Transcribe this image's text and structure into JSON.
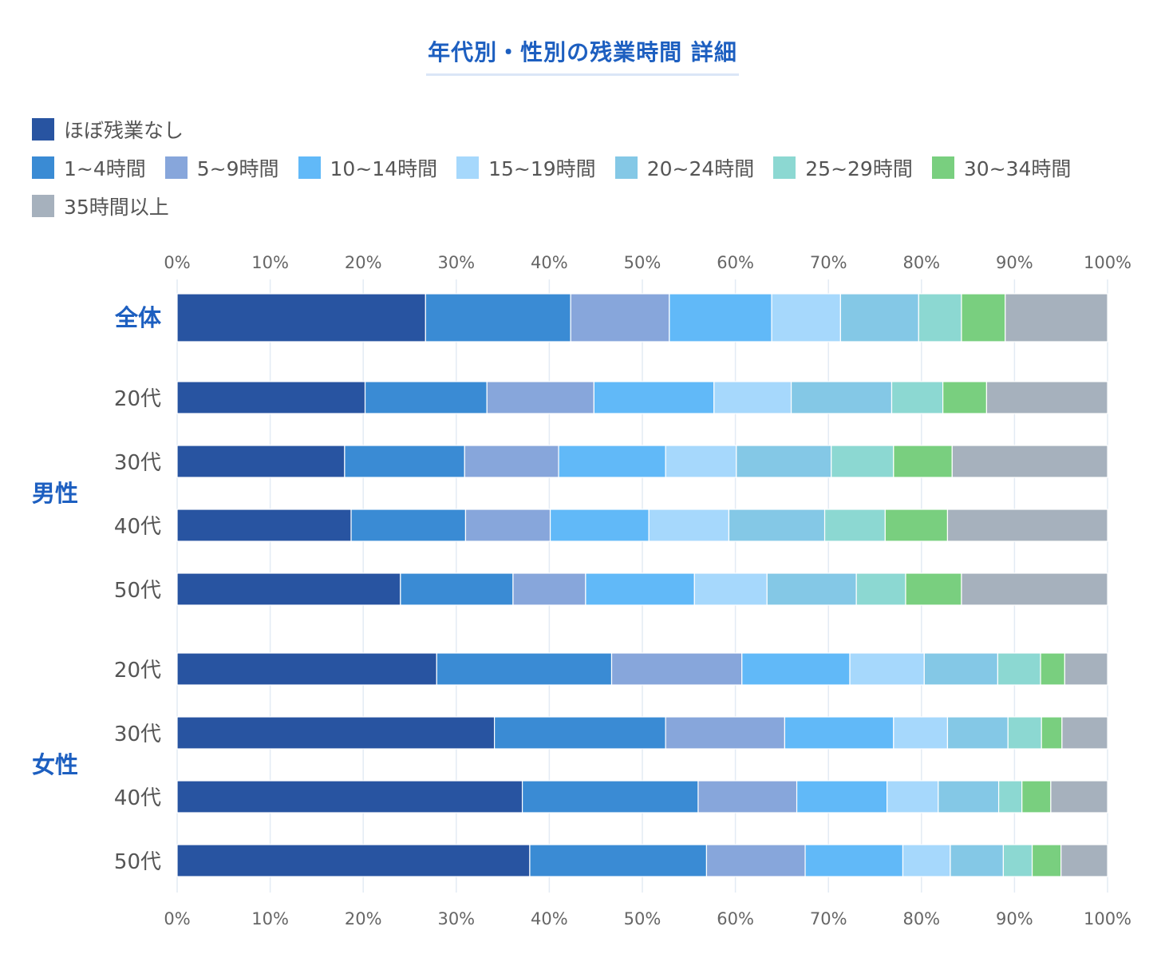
{
  "title": "年代別・性別の残業時間 詳細",
  "colors": [
    "#2854a1",
    "#3a8bd4",
    "#87a6db",
    "#61b9f8",
    "#a6d8fc",
    "#84c8e6",
    "#8cd8d2",
    "#79cf7f",
    "#a6b1bd"
  ],
  "legend": {
    "row1": [
      "ほぼ残業なし"
    ],
    "row2": [
      "1~4時間",
      "5~9時間",
      "10~14時間",
      "15~19時間",
      "20~24時間",
      "25~29時間",
      "30~34時間"
    ],
    "row3": [
      "35時間以上"
    ]
  },
  "chart_data": {
    "type": "bar",
    "orientation": "horizontal",
    "stacked": true,
    "title": "年代別・性別の残業時間 詳細",
    "xlim": [
      0,
      100
    ],
    "x_ticks": [
      "0%",
      "10%",
      "20%",
      "30%",
      "40%",
      "50%",
      "60%",
      "70%",
      "80%",
      "90%",
      "100%"
    ],
    "grid": true,
    "legend_position": "top-left",
    "groups": [
      {
        "label": "",
        "rows": [
          "全体"
        ]
      },
      {
        "label": "男性",
        "rows": [
          "20代",
          "30代",
          "40代",
          "50代"
        ]
      },
      {
        "label": "女性",
        "rows": [
          "20代",
          "30代",
          "40代",
          "50代"
        ]
      }
    ],
    "categories": [
      "全体",
      "男性 20代",
      "男性 30代",
      "男性 40代",
      "男性 50代",
      "女性 20代",
      "女性 30代",
      "女性 40代",
      "女性 50代"
    ],
    "series": [
      {
        "name": "ほぼ残業なし",
        "values": [
          26.7,
          20.2,
          18.0,
          18.7,
          24.0,
          27.9,
          34.1,
          37.1,
          37.9
        ]
      },
      {
        "name": "1~4時間",
        "values": [
          15.6,
          13.1,
          12.9,
          12.3,
          12.1,
          18.8,
          18.4,
          18.9,
          19.0
        ]
      },
      {
        "name": "5~9時間",
        "values": [
          10.6,
          11.5,
          10.1,
          9.1,
          7.8,
          14.0,
          12.8,
          10.6,
          10.6
        ]
      },
      {
        "name": "10~14時間",
        "values": [
          11.0,
          12.9,
          11.5,
          10.6,
          11.7,
          11.6,
          11.7,
          9.7,
          10.5
        ]
      },
      {
        "name": "15~19時間",
        "values": [
          7.4,
          8.3,
          7.6,
          8.6,
          7.8,
          8.0,
          5.8,
          5.5,
          5.1
        ]
      },
      {
        "name": "20~24時間",
        "values": [
          8.4,
          10.8,
          10.2,
          10.3,
          9.6,
          7.9,
          6.5,
          6.5,
          5.7
        ]
      },
      {
        "name": "25~29時間",
        "values": [
          4.6,
          5.5,
          6.7,
          6.5,
          5.3,
          4.6,
          3.6,
          2.5,
          3.1
        ]
      },
      {
        "name": "30~34時間",
        "values": [
          4.7,
          4.7,
          6.3,
          6.7,
          6.0,
          2.6,
          2.2,
          3.1,
          3.1
        ]
      },
      {
        "name": "35時間以上",
        "values": [
          11.0,
          13.0,
          16.7,
          17.2,
          15.7,
          4.6,
          4.9,
          6.1,
          5.0
        ]
      }
    ]
  }
}
